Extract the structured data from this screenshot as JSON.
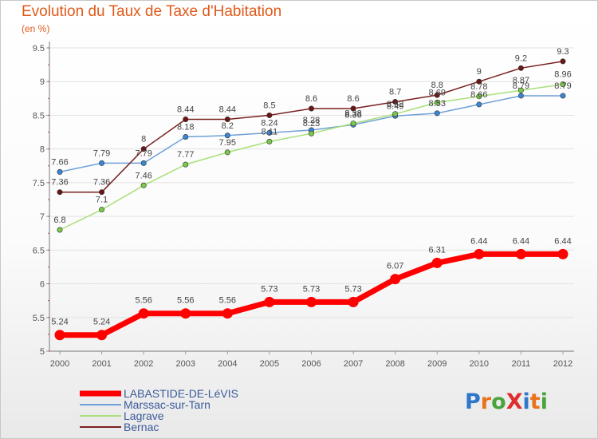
{
  "header": {
    "title": "Evolution du Taux de Taxe d'Habitation",
    "subtitle": "(en %)"
  },
  "logo": {
    "text": "ProXiti",
    "colors": [
      "#2e77c9",
      "#e8731c",
      "#4aa33c",
      "#e02d2d",
      "#2e77c9",
      "#e8731c",
      "#4aa33c"
    ]
  },
  "chart_data": {
    "type": "line",
    "x": [
      "2000",
      "2001",
      "2002",
      "2003",
      "2004",
      "2005",
      "2006",
      "2007",
      "2008",
      "2009",
      "2010",
      "2011",
      "2012"
    ],
    "y_ticks": [
      "5",
      "5.5",
      "6",
      "6.5",
      "7",
      "7.5",
      "8",
      "8.5",
      "9",
      "9.5"
    ],
    "ylim": [
      5,
      9.5
    ],
    "grid": "horizontal",
    "legend_position": "bottom-left",
    "series": [
      {
        "name": "LABASTIDE-DE-LéVIS",
        "color": "#ff0000",
        "thick": true,
        "values": [
          5.24,
          5.24,
          5.56,
          5.56,
          5.56,
          5.73,
          5.73,
          5.73,
          6.07,
          6.31,
          6.44,
          6.44,
          6.44
        ],
        "labels": [
          "5.24",
          "5.24",
          "5.56",
          "5.56",
          "5.56",
          "5.73",
          "5.73",
          "5.73",
          "6.07",
          "6.31",
          "6.44",
          "6.44",
          "6.44"
        ]
      },
      {
        "name": "Marssac-sur-Tarn",
        "color": "#6fa0d8",
        "marker": "#3a85d4",
        "thick": false,
        "values": [
          7.66,
          7.79,
          7.79,
          8.18,
          8.2,
          8.24,
          8.28,
          8.36,
          8.49,
          8.53,
          8.66,
          8.79,
          8.79
        ],
        "labels": [
          "7.66",
          "7.79",
          "7.79",
          "8.18",
          "8.2",
          "8.24",
          "8.28",
          "8.36",
          "8.49",
          "8.53",
          "8.66",
          "8.79",
          "8.79"
        ]
      },
      {
        "name": "Lagrave",
        "color": "#a8e07a",
        "marker": "#7ac94a",
        "thick": false,
        "values": [
          6.8,
          7.1,
          7.46,
          7.77,
          7.95,
          8.11,
          8.23,
          8.38,
          8.52,
          8.69,
          8.78,
          8.87,
          8.96
        ],
        "labels": [
          "6.8",
          "7.1",
          "7.46",
          "7.77",
          "7.95",
          "8.11",
          "8.23",
          "8.38",
          "8.52",
          "8.69",
          "8.78",
          "8.87",
          "8.96"
        ]
      },
      {
        "name": "Bernac",
        "color": "#7a2020",
        "marker": "#6b1515",
        "thick": false,
        "values": [
          7.36,
          7.36,
          8.0,
          8.44,
          8.44,
          8.5,
          8.6,
          8.6,
          8.7,
          8.8,
          9.0,
          9.2,
          9.3
        ],
        "labels": [
          "7.36",
          "7.36",
          "8",
          "8.44",
          "8.44",
          "8.5",
          "8.6",
          "8.6",
          "8.7",
          "8.8",
          "9",
          "9.2",
          "9.3"
        ]
      }
    ]
  }
}
